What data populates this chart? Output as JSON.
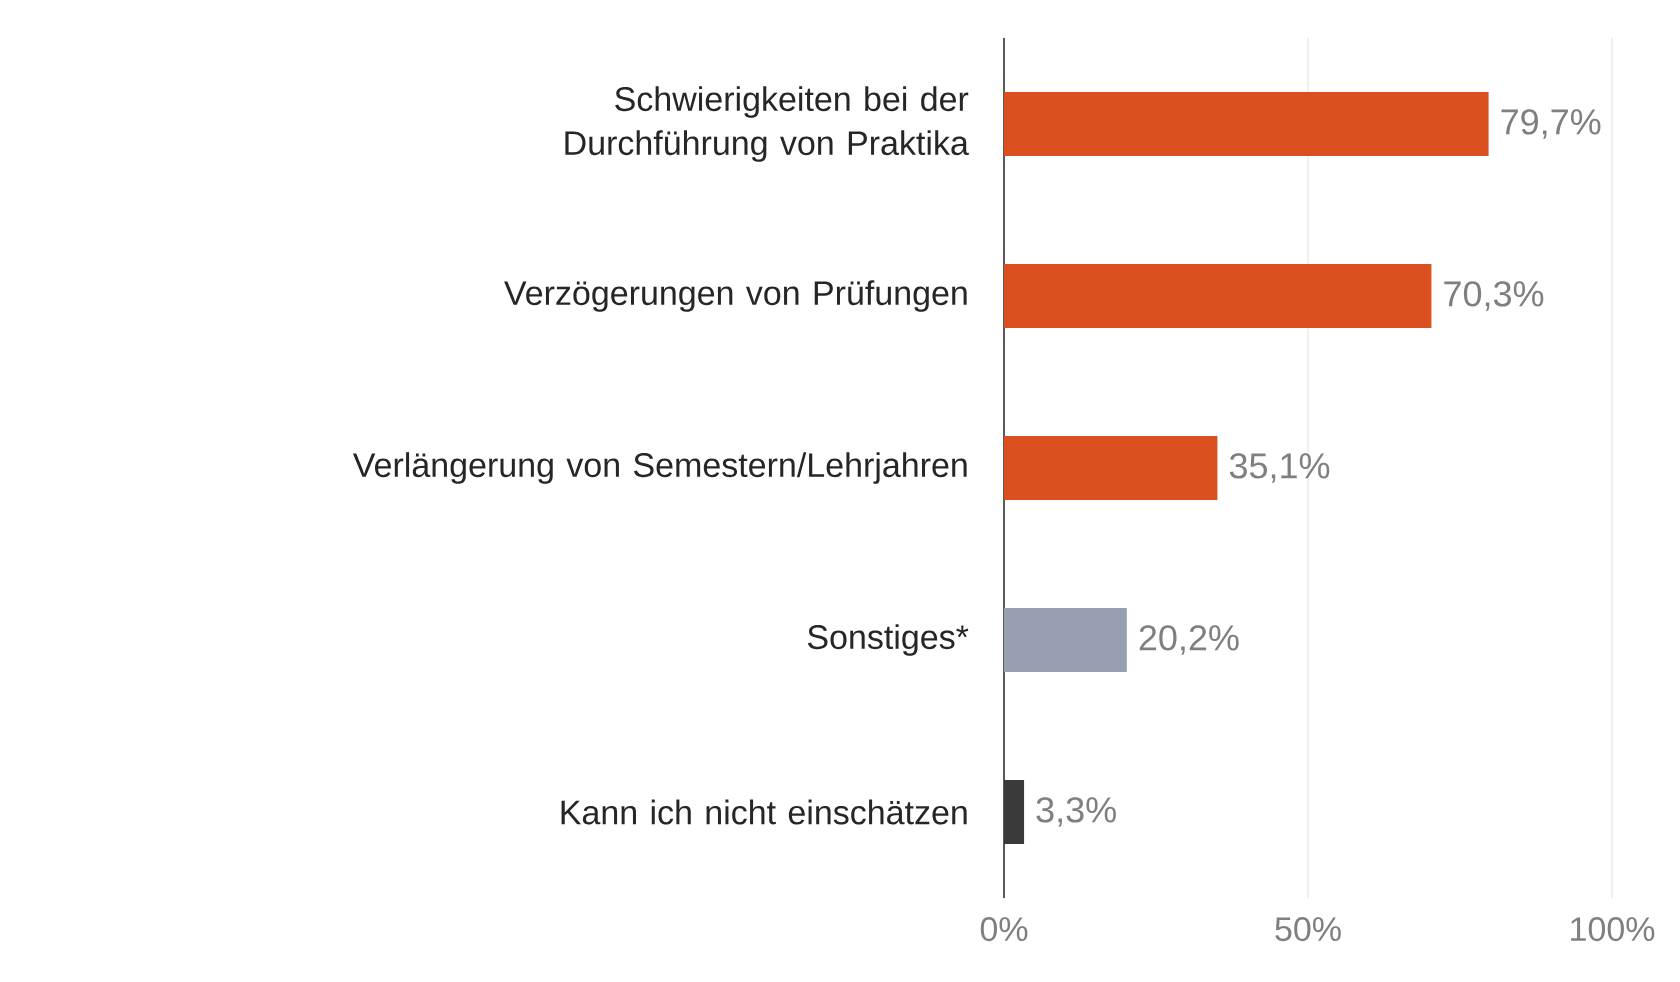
{
  "chart_data": {
    "type": "bar",
    "orientation": "horizontal",
    "categories": [
      "Schwierigkeiten bei der Durchführung von Praktika",
      "Verzögerungen von Prüfungen",
      "Verlängerung von Semestern/Lehrjahren",
      "Sonstiges*",
      "Kann ich nicht einschätzen"
    ],
    "values": [
      79.7,
      70.3,
      35.1,
      20.2,
      3.3
    ],
    "value_labels": [
      "79,7%",
      "70,3%",
      "35,1%",
      "20,2%",
      "3,3%"
    ],
    "colors": [
      "#d9501e",
      "#d9501e",
      "#d9501e",
      "#97a0b2",
      "#3a3a3a"
    ],
    "xlim": [
      0,
      100
    ],
    "xticks": [
      {
        "value": 0,
        "label": "0%"
      },
      {
        "value": 50,
        "label": "50%"
      },
      {
        "value": 100,
        "label": "100%"
      }
    ],
    "grid": "x"
  }
}
